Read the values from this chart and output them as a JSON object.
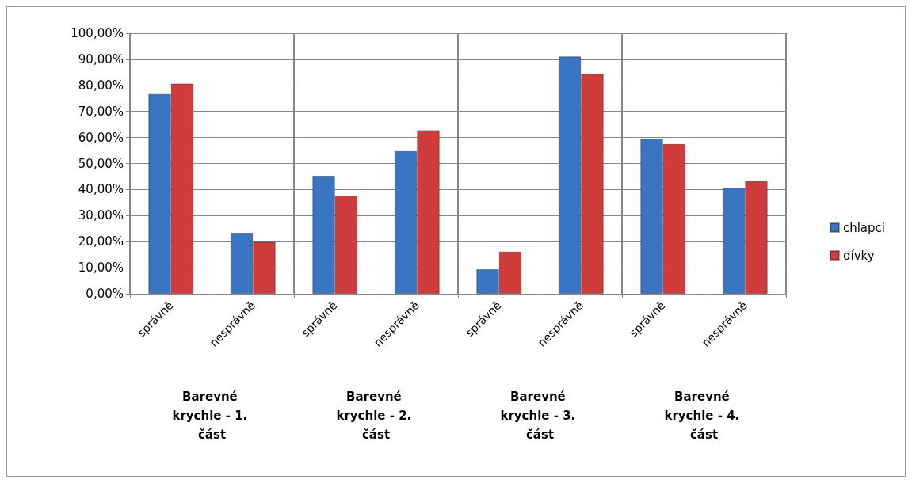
{
  "chart_data": {
    "type": "bar",
    "categories": [
      "správně",
      "nesprávně",
      "správně",
      "nesprávně",
      "správně",
      "nesprávně",
      "správně",
      "nesprávně"
    ],
    "series": [
      {
        "name": "chlapci",
        "color": "#3a75c4",
        "values": [
          76.7,
          23.4,
          45.3,
          54.8,
          9.4,
          91.1,
          59.6,
          40.7
        ]
      },
      {
        "name": "dívky",
        "color": "#d03b3b",
        "values": [
          80.7,
          19.9,
          37.7,
          62.8,
          16.2,
          84.4,
          57.5,
          43.2
        ]
      }
    ],
    "annotations": [
      "Barevné krychle - 1. část",
      "Barevné krychle - 2. část",
      "Barevné krychle - 3. část",
      "Barevné krychle - 4. část"
    ],
    "ylim": [
      0,
      100
    ],
    "yticks": [
      {
        "value": 0,
        "label": "0,00%"
      },
      {
        "value": 10,
        "label": "10,00%"
      },
      {
        "value": 20,
        "label": "20,00%"
      },
      {
        "value": 30,
        "label": "30,00%"
      },
      {
        "value": 40,
        "label": "40,00%"
      },
      {
        "value": 50,
        "label": "50,00%"
      },
      {
        "value": 60,
        "label": "60,00%"
      },
      {
        "value": 70,
        "label": "70,00%"
      },
      {
        "value": 80,
        "label": "80,00%"
      },
      {
        "value": 90,
        "label": "90,00%"
      },
      {
        "value": 100,
        "label": "100,00%"
      }
    ],
    "grid": "y",
    "legend": "right"
  }
}
